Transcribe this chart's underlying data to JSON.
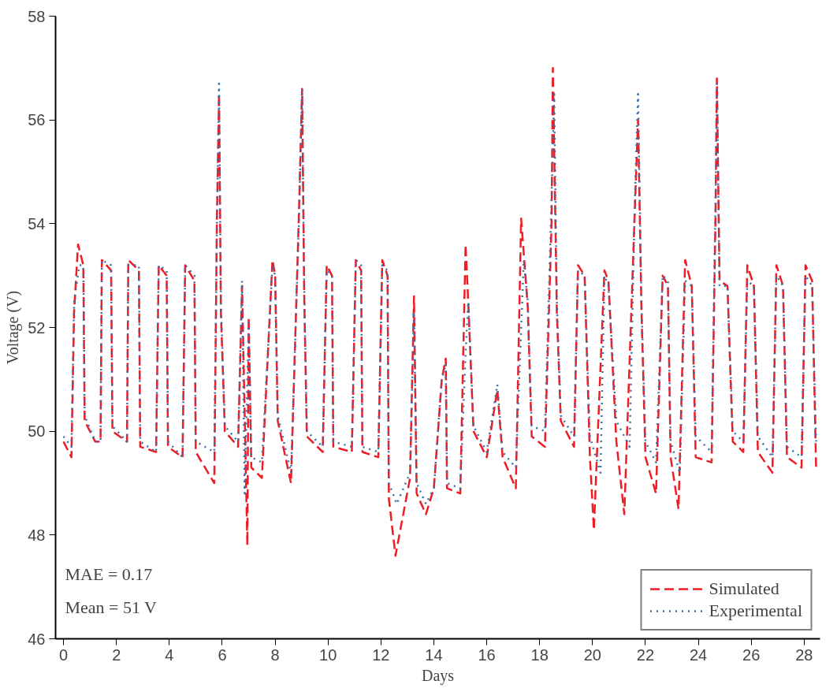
{
  "chart_data": {
    "type": "line",
    "xlabel": "Days",
    "ylabel": "Voltage (V)",
    "xlim": [
      -0.3,
      28.6
    ],
    "ylim": [
      46,
      58
    ],
    "xticks": [
      0,
      2,
      4,
      6,
      8,
      10,
      12,
      14,
      16,
      18,
      20,
      22,
      24,
      26,
      28
    ],
    "yticks": [
      46,
      48,
      50,
      52,
      54,
      56,
      58
    ],
    "grid": false,
    "legend": "bottom right",
    "marker": "none",
    "annotations": [
      "MAE = 0.17",
      "Mean = 51 V"
    ],
    "series": [
      {
        "name": "Simulated",
        "color": "#ee1c25",
        "line_style": "dashed",
        "x": [
          0,
          0.3,
          0.4,
          0.55,
          0.75,
          0.8,
          1.2,
          1.4,
          1.45,
          1.8,
          1.85,
          2.4,
          2.45,
          2.85,
          2.9,
          3.5,
          3.6,
          3.9,
          3.95,
          4.5,
          4.6,
          4.95,
          5.0,
          5.7,
          5.8,
          5.88,
          5.95,
          6.1,
          6.6,
          6.75,
          6.95,
          7.0,
          7.1,
          7.5,
          7.9,
          8.0,
          8.1,
          8.6,
          8.9,
          9.02,
          9.1,
          9.2,
          9.8,
          9.95,
          10.15,
          10.2,
          10.9,
          11.05,
          11.25,
          11.3,
          11.9,
          12.05,
          12.25,
          12.3,
          12.55,
          13.1,
          13.25,
          13.35,
          13.7,
          14.0,
          14.3,
          14.45,
          14.5,
          15.0,
          15.2,
          15.3,
          15.5,
          16.0,
          16.4,
          16.6,
          17.1,
          17.3,
          17.55,
          17.7,
          18.2,
          18.45,
          18.5,
          18.65,
          18.8,
          19.3,
          19.45,
          19.7,
          19.9,
          20.05,
          20.45,
          20.6,
          20.9,
          21.2,
          21.6,
          21.72,
          21.85,
          22.0,
          22.4,
          22.65,
          22.85,
          22.95,
          23.25,
          23.5,
          23.75,
          23.9,
          24.5,
          24.65,
          24.7,
          24.8,
          25.1,
          25.3,
          25.7,
          25.85,
          26.1,
          26.25,
          26.8,
          26.95,
          27.2,
          27.35,
          27.9,
          28.05,
          28.3,
          28.45
        ],
        "values": [
          49.8,
          49.5,
          52.3,
          53.6,
          53.2,
          50.2,
          49.8,
          49.8,
          53.3,
          53.1,
          50.0,
          49.8,
          53.3,
          53.1,
          49.7,
          49.6,
          53.2,
          53.0,
          49.7,
          49.5,
          53.2,
          52.9,
          49.6,
          49.0,
          54.1,
          56.5,
          52.3,
          50.0,
          49.7,
          52.8,
          47.8,
          52.2,
          49.3,
          49.1,
          53.3,
          53.0,
          50.2,
          49.0,
          54.2,
          56.6,
          52.6,
          49.9,
          49.6,
          53.2,
          53.0,
          49.7,
          49.6,
          53.3,
          53.1,
          49.6,
          49.5,
          53.3,
          53.0,
          48.7,
          47.6,
          49.1,
          52.6,
          48.8,
          48.4,
          48.9,
          51.0,
          51.4,
          48.9,
          48.8,
          53.6,
          52.5,
          50.0,
          49.5,
          50.8,
          49.5,
          48.9,
          54.1,
          52.4,
          49.9,
          49.7,
          54.0,
          57.0,
          52.3,
          50.2,
          49.7,
          53.2,
          53.0,
          49.5,
          48.1,
          53.1,
          52.9,
          49.8,
          48.4,
          54.3,
          56.0,
          52.3,
          49.5,
          48.8,
          53.0,
          52.8,
          49.5,
          48.5,
          53.3,
          52.8,
          49.5,
          49.4,
          54.2,
          56.8,
          52.9,
          52.8,
          49.8,
          49.6,
          53.2,
          52.8,
          49.6,
          49.2,
          53.2,
          52.8,
          49.5,
          49.3,
          53.2,
          52.9,
          49.3
        ]
      },
      {
        "name": "Experimental",
        "color": "#3a6fa8",
        "line_style": "dotted",
        "x": [
          0,
          0.3,
          0.4,
          0.6,
          0.75,
          0.8,
          1.2,
          1.4,
          1.45,
          1.8,
          1.85,
          2.4,
          2.45,
          2.85,
          2.9,
          3.5,
          3.6,
          3.9,
          3.95,
          4.5,
          4.6,
          4.95,
          5.0,
          5.7,
          5.8,
          5.88,
          5.95,
          6.1,
          6.6,
          6.75,
          6.85,
          7.0,
          7.1,
          7.5,
          7.9,
          8.0,
          8.1,
          8.6,
          8.9,
          9.02,
          9.1,
          9.2,
          9.8,
          9.95,
          10.15,
          10.2,
          10.9,
          11.05,
          11.25,
          11.3,
          11.9,
          12.05,
          12.25,
          12.3,
          12.6,
          13.1,
          13.25,
          13.35,
          13.7,
          14.0,
          14.3,
          14.45,
          14.5,
          15.0,
          15.2,
          15.3,
          15.5,
          16.0,
          16.4,
          16.6,
          17.1,
          17.4,
          17.55,
          17.7,
          18.2,
          18.45,
          18.55,
          18.65,
          18.8,
          19.3,
          19.45,
          19.7,
          19.9,
          20.3,
          20.45,
          20.6,
          20.9,
          21.4,
          21.6,
          21.72,
          21.85,
          22.0,
          22.4,
          22.65,
          22.85,
          22.95,
          23.3,
          23.5,
          23.75,
          23.9,
          24.5,
          24.65,
          24.7,
          24.8,
          25.1,
          25.3,
          25.7,
          25.85,
          26.1,
          26.25,
          26.8,
          26.95,
          27.2,
          27.35,
          27.9,
          28.05,
          28.3,
          28.45
        ],
        "values": [
          49.9,
          49.7,
          52.5,
          53.2,
          53.2,
          50.3,
          49.8,
          49.8,
          53.3,
          53.2,
          50.1,
          49.8,
          53.2,
          53.2,
          49.8,
          49.6,
          53.2,
          53.1,
          49.8,
          49.5,
          53.2,
          53.0,
          49.8,
          49.6,
          54.0,
          56.7,
          52.5,
          50.1,
          49.8,
          52.9,
          48.8,
          52.1,
          49.5,
          49.4,
          53.2,
          53.0,
          50.3,
          49.2,
          54.0,
          56.6,
          52.8,
          50.0,
          49.7,
          53.1,
          53.0,
          49.8,
          49.7,
          53.3,
          53.2,
          49.7,
          49.6,
          53.2,
          53.1,
          49.0,
          48.6,
          49.2,
          52.3,
          49.0,
          48.6,
          48.9,
          51.0,
          51.3,
          49.0,
          48.9,
          51.5,
          52.5,
          50.1,
          49.6,
          50.9,
          49.6,
          49.3,
          53.3,
          52.5,
          50.1,
          50.0,
          54.5,
          56.5,
          52.5,
          50.3,
          49.9,
          53.1,
          53.0,
          49.9,
          49.2,
          53.0,
          52.8,
          50.2,
          49.7,
          54.5,
          56.5,
          52.5,
          49.8,
          49.4,
          53.0,
          52.9,
          49.8,
          49.2,
          52.9,
          52.8,
          49.9,
          49.6,
          54.5,
          56.7,
          52.8,
          52.8,
          50.0,
          49.8,
          52.9,
          52.8,
          49.9,
          49.5,
          53.0,
          52.8,
          49.7,
          49.5,
          53.0,
          52.8,
          49.8
        ]
      }
    ]
  }
}
